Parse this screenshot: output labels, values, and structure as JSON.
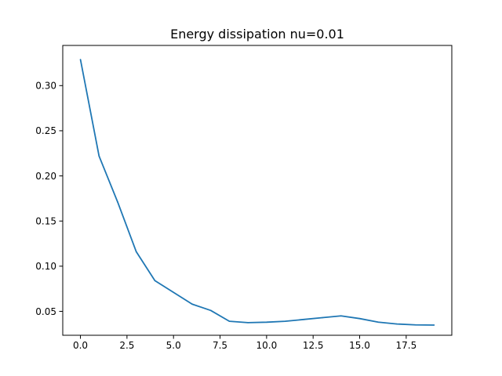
{
  "colors": {
    "background": "#ffffff",
    "axes_edge": "#000000",
    "series_line": "#1f77b4"
  },
  "chart_data": {
    "type": "line",
    "title": "Energy dissipation nu=0.01",
    "xlabel": "",
    "ylabel": "",
    "xlim": [
      -0.95,
      19.95
    ],
    "ylim": [
      0.0235,
      0.3445
    ],
    "grid": false,
    "legend": "none",
    "x_ticks": [
      {
        "value": 0.0,
        "label": "0.0"
      },
      {
        "value": 2.5,
        "label": "2.5"
      },
      {
        "value": 5.0,
        "label": "5.0"
      },
      {
        "value": 7.5,
        "label": "7.5"
      },
      {
        "value": 10.0,
        "label": "10.0"
      },
      {
        "value": 12.5,
        "label": "12.5"
      },
      {
        "value": 15.0,
        "label": "15.0"
      },
      {
        "value": 17.5,
        "label": "17.5"
      }
    ],
    "y_ticks": [
      {
        "value": 0.05,
        "label": "0.05"
      },
      {
        "value": 0.1,
        "label": "0.10"
      },
      {
        "value": 0.15,
        "label": "0.15"
      },
      {
        "value": 0.2,
        "label": "0.20"
      },
      {
        "value": 0.25,
        "label": "0.25"
      },
      {
        "value": 0.3,
        "label": "0.30"
      }
    ],
    "series": [
      {
        "x": [
          0,
          1,
          2,
          3,
          4,
          5,
          6,
          7,
          8,
          9,
          10,
          11,
          12,
          13,
          14,
          15,
          16,
          17,
          18,
          19
        ],
        "y": [
          0.329,
          0.222,
          0.171,
          0.116,
          0.084,
          0.071,
          0.058,
          0.051,
          0.039,
          0.0375,
          0.038,
          0.039,
          0.041,
          0.043,
          0.045,
          0.042,
          0.038,
          0.036,
          0.035,
          0.0348
        ],
        "color": "#1f77b4"
      }
    ]
  }
}
